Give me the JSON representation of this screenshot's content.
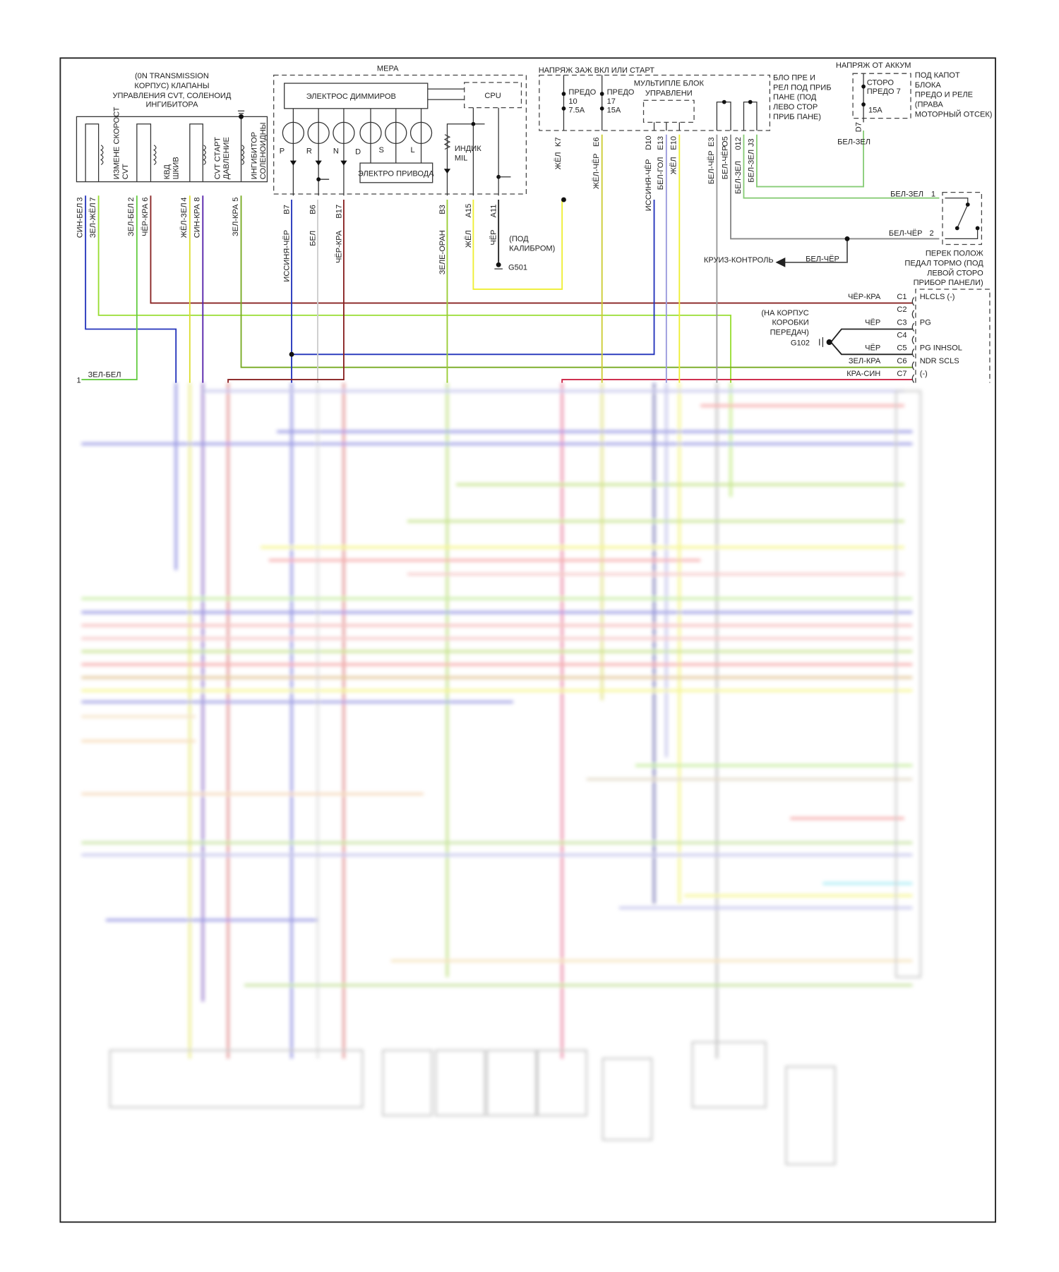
{
  "transmission_valves": {
    "title": [
      "(0N TRANSMISSION",
      "КОРПУС) КЛАПАНЫ",
      "УПРАВЛЕНИЯ CVT, СОЛЕНОИД",
      "ИНГИБИТОРА"
    ],
    "coils": [
      {
        "label1": "ИЗМЕНЕ СКОРОСТ",
        "label2": "CVT"
      },
      {
        "label1": "КВД",
        "label2": "ШКИВ"
      },
      {
        "label1": "CVT СТАРТ",
        "label2": "ДАВЛЕНИЕ"
      },
      {
        "label1": "ИНГИБИТОР",
        "label2": "СОЛЕНОИДНЫ"
      }
    ],
    "pins": [
      {
        "pin": "3",
        "wire": "СИН-БЕЛ",
        "color": "#2233bb"
      },
      {
        "pin": "7",
        "wire": "ЗЕЛ-ЖЁЛ",
        "color": "#99dd33"
      },
      {
        "pin": "2",
        "wire": "ЗЕЛ-БЕЛ",
        "color": "#66cc44"
      },
      {
        "pin": "6",
        "wire": "ЧЁР-КРА",
        "color": "#882222"
      },
      {
        "pin": "4",
        "wire": "ЖЁЛ-ЗЕЛ",
        "color": "#dddd33"
      },
      {
        "pin": "8",
        "wire": "СИН-КРА",
        "color": "#5522aa"
      },
      {
        "pin": "5",
        "wire": "ЗЕЛ-КРА",
        "color": "#77aa22"
      }
    ]
  },
  "meter": {
    "title": "МЕРА",
    "dimmer": "ЭЛЕКТРОС ДИММИРОВ",
    "cpu": "CPU",
    "gears": [
      "P",
      "R",
      "N",
      "D",
      "S",
      "L"
    ],
    "drive": "ЭЛЕКТРО ПРИВОДА",
    "mil": [
      "ИНДИК",
      "MIL"
    ],
    "pins": [
      {
        "pin": "B7",
        "wire": "ИССИНЯ-ЧЁР",
        "color": "#2233bb"
      },
      {
        "pin": "B6",
        "wire": "БЕЛ",
        "color": "#cccccc"
      },
      {
        "pin": "B17",
        "wire": "ЧЁР-КРА",
        "color": "#882222"
      },
      {
        "pin": "B3",
        "wire": "ЗЕЛЕ-ОРАН",
        "color": "#99cc33"
      },
      {
        "pin": "A15",
        "wire": "ЖЁЛ",
        "color": "#eeee33"
      },
      {
        "pin": "A11",
        "wire": "ЧЁР",
        "color": "#222222"
      }
    ],
    "ground_note": [
      "(ПОД",
      "КАЛИБРОМ)"
    ],
    "ground": "G501"
  },
  "ignition": {
    "title": "НАПРЯЖ ЗАЖ ВКЛ ИЛИ СТАРТ",
    "fuses": [
      {
        "name": "ПРЕДО",
        "num": "10",
        "amp": "7.5A"
      },
      {
        "name": "ПРЕДО",
        "num": "17",
        "amp": "15A"
      }
    ],
    "multiplex": [
      "МУЛЬТИПЛЕ БЛОК",
      "УПРАВЛЕНИ"
    ],
    "box_label": [
      "БЛО ПРЕ И",
      "РЕЛ ПОД ПРИБ",
      "ПАНЕ (ПОД",
      "ЛЕВО СТОР",
      "ПРИБ ПАНЕ)"
    ],
    "pins": [
      {
        "pin": "K7",
        "wire": "ЖЁЛ",
        "color": "#eeee33"
      },
      {
        "pin": "E6",
        "wire": "ЖЁЛ-ЧЁР",
        "color": "#cccc33"
      },
      {
        "pin": "D10",
        "wire": "ИССИНЯ-ЧЁР",
        "color": "#222288"
      },
      {
        "pin": "E13",
        "wire": "БЕЛ-ГОЛ",
        "color": "#9999dd"
      },
      {
        "pin": "E10",
        "wire": "ЖЁЛ",
        "color": "#eeee33"
      },
      {
        "pin": "E3",
        "wire": "БЕЛ-ЧЁР",
        "color": "#999999"
      },
      {
        "pin": "O5",
        "wire": "БЕЛ-ЧЁР",
        "color": "#888888"
      },
      {
        "pin": "012",
        "wire": "БЕЛ-ЗЕЛ",
        "color": "#88cc77"
      },
      {
        "pin": "J3",
        "wire": "БЕЛ-ЗЕЛ",
        "color": "#88cc77"
      }
    ]
  },
  "battery": {
    "title": "НАПРЯЖ ОТ АККУМ",
    "fuse_name": "СТОРО ПРЕДО 7",
    "fuse_amp": "15A",
    "box_label": [
      "ПОД КАПОТ",
      "БЛОКА",
      "ПРЕДО И РЕЛЕ",
      "(ПРАВА",
      "МОТОРНЫЙ ОТСЕК)"
    ],
    "pin": "D7",
    "wire": "БЕЛ-ЗЕЛ"
  },
  "brake_switch": {
    "pins": [
      {
        "pin": "1",
        "wire": "БЕЛ-ЗЕЛ"
      },
      {
        "pin": "2",
        "wire": "БЕЛ-ЧЁР"
      }
    ],
    "label": [
      "ПЕРЕК ПОЛОЖ",
      "ПЕДАЛ ТОРМО (ПОД",
      "ЛЕВОЙ СТОРО",
      "ПРИБОР ПАНЕЛИ)"
    ],
    "cruise_wire": "БЕЛ-ЧЁР",
    "cruise": "КРУИЗ-КОНТРОЛЬ"
  },
  "ground_g102": {
    "label": [
      "(НА КОРПУС",
      "КОРОБКИ",
      "ПЕРЕДАЧ)"
    ],
    "name": "G102"
  },
  "tcm_connector": {
    "rows": [
      {
        "pin": "C1",
        "wire": "ЧЁР-КРА",
        "signal": "HLCLS (-)"
      },
      {
        "pin": "C2",
        "wire": "",
        "signal": ""
      },
      {
        "pin": "C3",
        "wire": "ЧЁР",
        "signal": "PG"
      },
      {
        "pin": "C4",
        "wire": "",
        "signal": ""
      },
      {
        "pin": "C5",
        "wire": "ЧЁР",
        "signal": "PG INHSOL"
      },
      {
        "pin": "C6",
        "wire": "ЗЕЛ-КРА",
        "signal": "NDR SCLS"
      },
      {
        "pin": "C7",
        "wire": "КРА-СИН",
        "signal": "(-)"
      }
    ]
  },
  "left_stub": {
    "pin": "1",
    "wire": "ЗЕЛ-БЕЛ"
  }
}
